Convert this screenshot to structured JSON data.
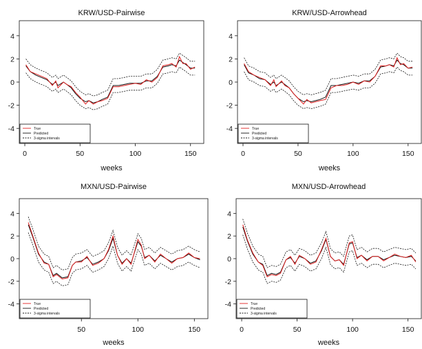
{
  "chart_data": [
    {
      "type": "line",
      "title": "KRW/USD-Pairwise",
      "xlabel": "weeks",
      "ylabel": "",
      "xlim": [
        -5,
        162
      ],
      "ylim": [
        -5.3,
        5.3
      ],
      "xticks": [
        0,
        50,
        100,
        150
      ],
      "yticks": [
        -4,
        -2,
        0,
        2,
        4
      ],
      "legend": {
        "position": "bottom-left",
        "entries": [
          "True",
          "Predicted",
          "3-sigma intervals"
        ]
      },
      "band": 0.6,
      "series": [
        {
          "name": "True",
          "color": "#e02020",
          "style": "solid",
          "x": [
            1,
            5,
            10,
            15,
            20,
            25,
            28,
            30,
            35,
            38,
            42,
            46,
            50,
            55,
            58,
            62,
            66,
            70,
            75,
            80,
            85,
            90,
            95,
            100,
            105,
            110,
            115,
            120,
            125,
            130,
            133,
            137,
            140,
            143,
            146,
            150,
            154
          ],
          "y": [
            1.5,
            0.9,
            0.7,
            0.5,
            0.3,
            -0.3,
            0.1,
            -0.5,
            0.0,
            -0.2,
            -0.4,
            -0.9,
            -1.3,
            -1.9,
            -1.6,
            -1.9,
            -1.7,
            -1.6,
            -1.4,
            -0.4,
            -0.4,
            -0.3,
            -0.2,
            -0.1,
            -0.2,
            0.2,
            0.0,
            0.4,
            1.4,
            1.5,
            1.6,
            1.3,
            2.2,
            1.6,
            1.6,
            1.1,
            1.3
          ]
        },
        {
          "name": "Predicted",
          "color": "#111111",
          "style": "solid",
          "x": [
            1,
            5,
            10,
            15,
            20,
            25,
            28,
            30,
            35,
            38,
            42,
            46,
            50,
            55,
            58,
            62,
            66,
            70,
            75,
            80,
            85,
            90,
            95,
            100,
            105,
            110,
            115,
            120,
            125,
            130,
            133,
            137,
            140,
            143,
            146,
            150,
            154
          ],
          "y": [
            1.4,
            0.9,
            0.6,
            0.4,
            0.2,
            -0.2,
            0.0,
            -0.3,
            0.0,
            -0.2,
            -0.5,
            -1.0,
            -1.4,
            -1.7,
            -1.6,
            -1.8,
            -1.7,
            -1.5,
            -1.3,
            -0.3,
            -0.3,
            -0.2,
            -0.1,
            -0.1,
            -0.1,
            0.1,
            0.1,
            0.5,
            1.3,
            1.4,
            1.5,
            1.4,
            1.9,
            1.7,
            1.5,
            1.2,
            1.2
          ]
        }
      ]
    },
    {
      "type": "line",
      "title": "KRW/USD-Arrowhead",
      "xlabel": "weeks",
      "ylabel": "",
      "xlim": [
        -5,
        162
      ],
      "ylim": [
        -5.3,
        5.3
      ],
      "xticks": [
        0,
        50,
        100,
        150
      ],
      "yticks": [
        -4,
        -2,
        0,
        2,
        4
      ],
      "legend": {
        "position": "bottom-left",
        "entries": [
          "True",
          "Predicted",
          "3-sigma intervals"
        ]
      },
      "band": 0.6,
      "series": [
        {
          "name": "True",
          "color": "#e02020",
          "style": "solid",
          "x": [
            1,
            5,
            10,
            15,
            20,
            25,
            28,
            30,
            35,
            38,
            42,
            46,
            50,
            55,
            58,
            62,
            66,
            70,
            75,
            80,
            85,
            90,
            95,
            100,
            105,
            110,
            115,
            120,
            125,
            130,
            133,
            137,
            140,
            143,
            146,
            150,
            154
          ],
          "y": [
            1.6,
            0.9,
            0.6,
            0.4,
            0.2,
            -0.3,
            0.2,
            -0.4,
            0.1,
            -0.3,
            -0.5,
            -1.0,
            -1.4,
            -1.9,
            -1.5,
            -1.8,
            -1.7,
            -1.6,
            -1.5,
            -0.5,
            -0.3,
            -0.3,
            -0.2,
            0.0,
            -0.2,
            0.1,
            0.0,
            0.5,
            1.4,
            1.4,
            1.5,
            1.3,
            2.1,
            1.5,
            1.6,
            1.2,
            1.3
          ]
        },
        {
          "name": "Predicted",
          "color": "#111111",
          "style": "solid",
          "x": [
            1,
            5,
            10,
            15,
            20,
            25,
            28,
            30,
            35,
            38,
            42,
            46,
            50,
            55,
            58,
            62,
            66,
            70,
            75,
            80,
            85,
            90,
            95,
            100,
            105,
            110,
            115,
            120,
            125,
            130,
            133,
            137,
            140,
            143,
            146,
            150,
            154
          ],
          "y": [
            1.5,
            0.8,
            0.6,
            0.3,
            0.2,
            -0.2,
            0.0,
            -0.3,
            0.0,
            -0.2,
            -0.5,
            -1.0,
            -1.4,
            -1.7,
            -1.6,
            -1.7,
            -1.6,
            -1.5,
            -1.3,
            -0.3,
            -0.3,
            -0.2,
            -0.1,
            0.0,
            -0.1,
            0.1,
            0.1,
            0.5,
            1.3,
            1.4,
            1.5,
            1.4,
            1.9,
            1.6,
            1.5,
            1.2,
            1.2
          ]
        }
      ]
    },
    {
      "type": "line",
      "title": "MXN/USD-Pairwise",
      "xlabel": "weeks",
      "ylabel": "",
      "xlim": [
        -5,
        162
      ],
      "ylim": [
        -5.3,
        5.3
      ],
      "xticks": [
        50,
        100,
        150
      ],
      "yticks": [
        -4,
        -2,
        0,
        2,
        4
      ],
      "legend": {
        "position": "bottom-left",
        "entries": [
          "True",
          "Predicted",
          "3-sigma intervals"
        ]
      },
      "band": 0.7,
      "series": [
        {
          "name": "True",
          "color": "#e02020",
          "style": "solid",
          "x": [
            3,
            7,
            12,
            17,
            21,
            25,
            28,
            33,
            38,
            42,
            45,
            50,
            55,
            60,
            65,
            70,
            74,
            78,
            82,
            86,
            90,
            94,
            100,
            103,
            106,
            110,
            115,
            120,
            125,
            130,
            135,
            140,
            145,
            150,
            155
          ],
          "y": [
            3.2,
            2.0,
            0.5,
            -0.4,
            -0.5,
            -1.6,
            -1.4,
            -1.8,
            -1.7,
            -0.6,
            -0.3,
            -0.3,
            0.2,
            -0.6,
            -0.4,
            0.0,
            0.8,
            2.0,
            0.3,
            -0.5,
            0.0,
            -0.5,
            1.7,
            1.2,
            0.0,
            0.3,
            -0.3,
            0.4,
            0.0,
            -0.4,
            0.0,
            0.1,
            0.5,
            0.1,
            0.0
          ]
        },
        {
          "name": "Predicted",
          "color": "#111111",
          "style": "solid",
          "x": [
            3,
            7,
            12,
            17,
            21,
            25,
            28,
            33,
            38,
            42,
            45,
            50,
            55,
            60,
            65,
            70,
            74,
            78,
            82,
            86,
            90,
            94,
            100,
            103,
            106,
            110,
            115,
            120,
            125,
            130,
            135,
            140,
            145,
            150,
            155
          ],
          "y": [
            3.0,
            1.9,
            0.4,
            -0.3,
            -0.5,
            -1.5,
            -1.3,
            -1.7,
            -1.6,
            -0.6,
            -0.3,
            -0.2,
            0.1,
            -0.5,
            -0.3,
            0.0,
            0.7,
            1.8,
            0.3,
            -0.4,
            0.0,
            -0.4,
            1.5,
            1.1,
            0.1,
            0.3,
            -0.2,
            0.3,
            0.0,
            -0.3,
            0.0,
            0.1,
            0.4,
            0.1,
            -0.1
          ]
        }
      ]
    },
    {
      "type": "line",
      "title": "MXN/USD-Arrowhead",
      "xlabel": "weeks",
      "ylabel": "",
      "xlim": [
        -5,
        162
      ],
      "ylim": [
        -5.3,
        5.3
      ],
      "xticks": [
        0,
        50,
        100,
        150
      ],
      "yticks": [
        -4,
        -2,
        0,
        2,
        4
      ],
      "legend": {
        "position": "bottom-left",
        "entries": [
          "True",
          "Predicted",
          "3-sigma intervals"
        ]
      },
      "band": 0.7,
      "series": [
        {
          "name": "True",
          "color": "#e02020",
          "style": "solid",
          "x": [
            1,
            5,
            10,
            15,
            19,
            23,
            27,
            31,
            35,
            40,
            44,
            48,
            52,
            57,
            62,
            67,
            72,
            76,
            80,
            84,
            88,
            92,
            97,
            100,
            104,
            108,
            113,
            118,
            123,
            128,
            133,
            138,
            143,
            148,
            153,
            157
          ],
          "y": [
            3.0,
            1.7,
            0.5,
            -0.3,
            -0.6,
            -1.6,
            -1.4,
            -1.5,
            -1.3,
            -0.1,
            0.2,
            -0.5,
            0.3,
            0.0,
            -0.5,
            -0.3,
            0.8,
            1.8,
            0.2,
            -0.2,
            -0.1,
            -0.6,
            1.4,
            1.5,
            0.0,
            0.3,
            -0.2,
            0.2,
            0.2,
            -0.2,
            0.1,
            0.4,
            0.2,
            0.1,
            0.3,
            -0.3
          ]
        },
        {
          "name": "Predicted",
          "color": "#111111",
          "style": "solid",
          "x": [
            1,
            5,
            10,
            15,
            19,
            23,
            27,
            31,
            35,
            40,
            44,
            48,
            52,
            57,
            62,
            67,
            72,
            76,
            80,
            84,
            88,
            92,
            97,
            100,
            104,
            108,
            113,
            118,
            123,
            128,
            133,
            138,
            143,
            148,
            153,
            157
          ],
          "y": [
            2.8,
            1.6,
            0.4,
            -0.3,
            -0.5,
            -1.5,
            -1.3,
            -1.4,
            -1.2,
            -0.1,
            0.1,
            -0.4,
            0.2,
            0.0,
            -0.4,
            -0.2,
            0.7,
            1.7,
            0.2,
            -0.2,
            -0.1,
            -0.5,
            1.3,
            1.4,
            0.1,
            0.3,
            -0.1,
            0.2,
            0.2,
            -0.1,
            0.1,
            0.3,
            0.2,
            0.1,
            0.2,
            -0.2
          ]
        }
      ]
    }
  ]
}
